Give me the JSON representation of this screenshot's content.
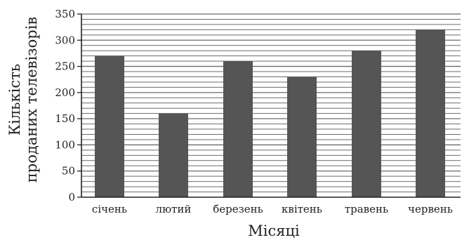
{
  "chart_data": {
    "type": "bar",
    "categories": [
      "січень",
      "лютий",
      "березень",
      "квітень",
      "травень",
      "червень"
    ],
    "values": [
      270,
      160,
      260,
      230,
      280,
      320
    ],
    "xlabel": "Місяці",
    "ylabel_lines": [
      "Кількість",
      "проданих телевізорів"
    ],
    "ylim": [
      0,
      350
    ],
    "yticks": [
      0,
      50,
      100,
      150,
      200,
      250,
      300,
      350
    ],
    "minor_grid_step": 10,
    "grid": true,
    "bar_color": "#555555",
    "grid_color": "#6b6b6b"
  }
}
